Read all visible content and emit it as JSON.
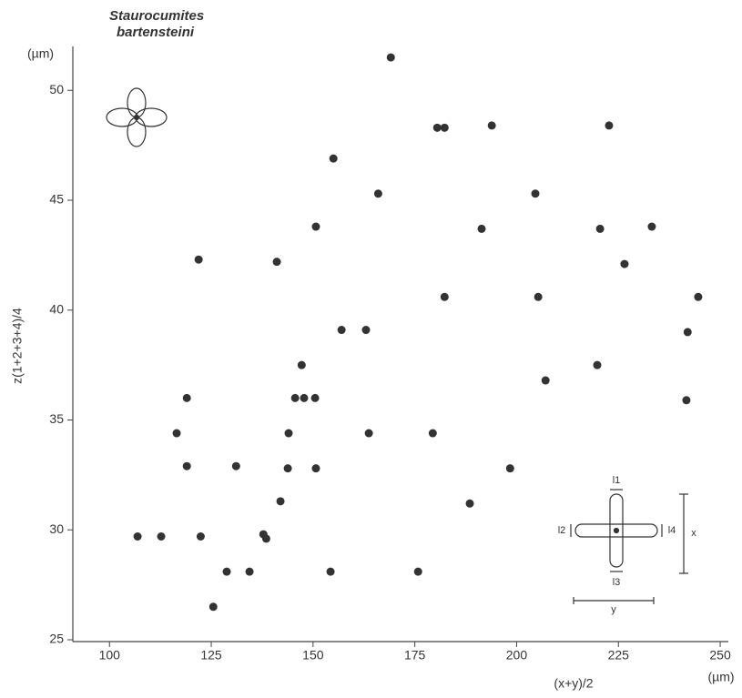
{
  "chart_data": {
    "type": "scatter",
    "title": [
      "Staurocumites",
      "bartensteini"
    ],
    "x_label": "(x+y)/2",
    "y_label": "z(1+2+3+4)/4",
    "x_unit": "(µm)",
    "y_unit": "(µm)",
    "annotations": [
      "l1",
      "l2",
      "l3",
      "l4",
      "x",
      "y"
    ],
    "color": "#333333",
    "x": [
      169.1,
      180.5,
      182.3,
      193.9,
      222.7,
      155.0,
      166.0,
      204.6,
      150.7,
      191.4,
      220.5,
      233.2,
      121.9,
      141.1,
      226.5,
      182.3,
      205.3,
      244.6,
      157.0,
      163.0,
      242.0,
      147.2,
      219.8,
      207.1,
      119.0,
      145.6,
      147.8,
      150.5,
      241.7,
      116.5,
      144.0,
      163.7,
      179.4,
      119.0,
      131.1,
      143.8,
      150.7,
      198.4,
      142.0,
      188.5,
      106.9,
      112.7,
      122.4,
      137.8,
      138.5,
      128.8,
      134.4,
      154.3,
      175.8,
      125.5
    ],
    "values": [
      51.5,
      48.3,
      48.3,
      48.4,
      48.4,
      46.9,
      45.3,
      45.3,
      43.8,
      43.7,
      43.7,
      43.8,
      42.3,
      42.2,
      42.1,
      40.6,
      40.6,
      40.6,
      39.1,
      39.1,
      39.0,
      37.5,
      37.5,
      36.8,
      36.0,
      36.0,
      36.0,
      36.0,
      35.9,
      34.4,
      34.4,
      34.4,
      34.4,
      32.9,
      32.9,
      32.8,
      32.8,
      32.8,
      31.3,
      31.2,
      29.7,
      29.7,
      29.7,
      29.8,
      29.6,
      28.1,
      28.1,
      28.1,
      28.1,
      26.5
    ],
    "xlim": [
      91,
      252
    ],
    "ylim": [
      25,
      52
    ],
    "xticks": [
      100,
      125,
      150,
      175,
      200,
      225,
      250
    ],
    "yticks": [
      25,
      30,
      35,
      40,
      45,
      50
    ]
  }
}
